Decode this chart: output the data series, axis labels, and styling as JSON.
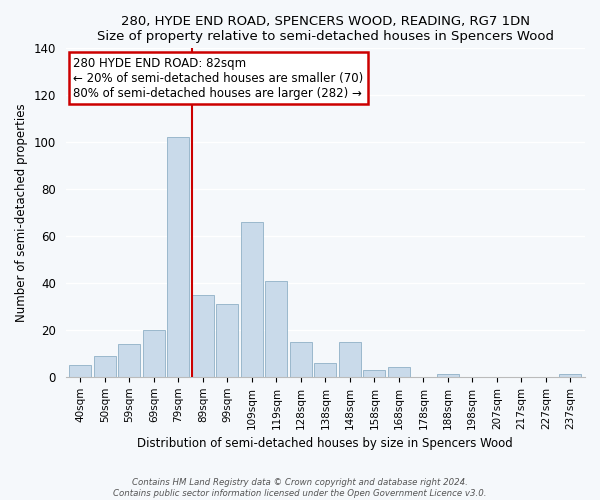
{
  "title": "280, HYDE END ROAD, SPENCERS WOOD, READING, RG7 1DN",
  "subtitle": "Size of property relative to semi-detached houses in Spencers Wood",
  "xlabel": "Distribution of semi-detached houses by size in Spencers Wood",
  "ylabel": "Number of semi-detached properties",
  "bin_labels": [
    "40sqm",
    "50sqm",
    "59sqm",
    "69sqm",
    "79sqm",
    "89sqm",
    "99sqm",
    "109sqm",
    "119sqm",
    "128sqm",
    "138sqm",
    "148sqm",
    "158sqm",
    "168sqm",
    "178sqm",
    "188sqm",
    "198sqm",
    "207sqm",
    "217sqm",
    "227sqm",
    "237sqm"
  ],
  "bar_heights": [
    5,
    9,
    14,
    20,
    102,
    35,
    31,
    66,
    41,
    15,
    6,
    15,
    3,
    4,
    0,
    1,
    0,
    0,
    0,
    0,
    1
  ],
  "bar_color": "#c9daea",
  "bar_edge_color": "#9ab8cc",
  "ylim": [
    0,
    140
  ],
  "yticks": [
    0,
    20,
    40,
    60,
    80,
    100,
    120,
    140
  ],
  "property_line_bin_index": 5,
  "property_line_color": "#cc0000",
  "annotation_title": "280 HYDE END ROAD: 82sqm",
  "annotation_line1": "← 20% of semi-detached houses are smaller (70)",
  "annotation_line2": "80% of semi-detached houses are larger (282) →",
  "annotation_box_facecolor": "#ffffff",
  "annotation_box_edgecolor": "#cc0000",
  "footer1": "Contains HM Land Registry data © Crown copyright and database right 2024.",
  "footer2": "Contains public sector information licensed under the Open Government Licence v3.0.",
  "fig_facecolor": "#f5f8fb",
  "plot_facecolor": "#f5f8fb",
  "grid_color": "#ffffff",
  "spine_color": "#bbbbbb"
}
